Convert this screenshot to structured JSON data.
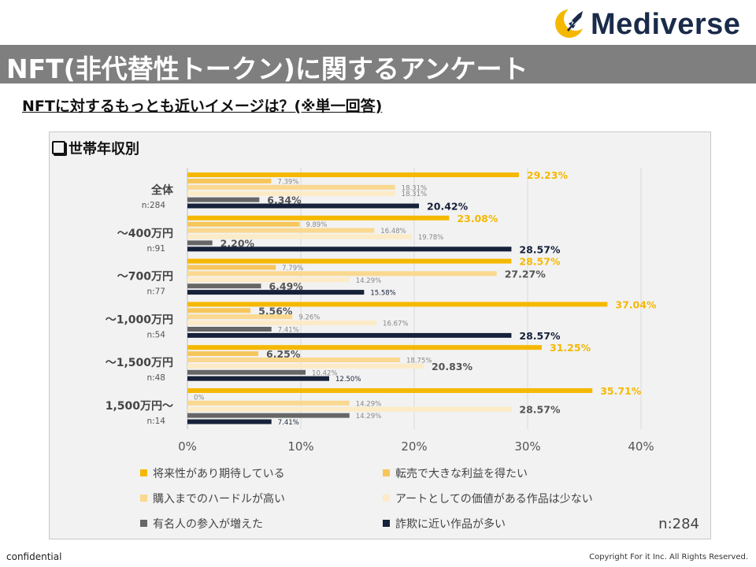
{
  "brand": {
    "name": "Mediverse",
    "accent": "#f5b800",
    "navy": "#1a2b4a"
  },
  "header": {
    "title": "NFT(非代替性トークン)に関するアンケート",
    "question": "NFTに対するもっとも近いイメージは？(※単一回答)"
  },
  "panel": {
    "title": "世帯年収別",
    "n_total": "n:284"
  },
  "footer": {
    "left": "confidential",
    "right": "Copyright For it Inc. All Rights Reserved."
  },
  "chart_data": {
    "type": "bar",
    "orientation": "horizontal",
    "title": "世帯年収別",
    "xlim": [
      0,
      40
    ],
    "xticks": [
      "0%",
      "10%",
      "20%",
      "30%",
      "40%"
    ],
    "categories": [
      {
        "label": "全体",
        "n": "n:284"
      },
      {
        "label": "～400万円",
        "n": "n:91"
      },
      {
        "label": "～700万円",
        "n": "n:77"
      },
      {
        "label": "～1,000万円",
        "n": "n:54"
      },
      {
        "label": "～1,500万円",
        "n": "n:48"
      },
      {
        "label": "1,500万円～",
        "n": "n:14"
      }
    ],
    "series": [
      {
        "name": "将来性があり期待している",
        "color": "#f5b800",
        "label_color": "#f5b800",
        "values": [
          29.23,
          23.08,
          28.57,
          37.04,
          31.25,
          35.71
        ],
        "labels": [
          "29.23%",
          "23.08%",
          "28.57%",
          "37.04%",
          "31.25%",
          "35.71%"
        ],
        "emph": [
          true,
          true,
          true,
          true,
          true,
          true
        ]
      },
      {
        "name": "転売で大きな利益を得たい",
        "color": "#f7c65a",
        "label_color": "#888888",
        "values": [
          7.39,
          9.89,
          7.79,
          5.56,
          6.25,
          0
        ],
        "labels": [
          "7.39%",
          "9.89%",
          "7.79%",
          "5.56%",
          "6.25%",
          "0%"
        ],
        "emph": [
          false,
          false,
          false,
          true,
          true,
          false
        ]
      },
      {
        "name": "購入までのハードルが高い",
        "color": "#fad88f",
        "label_color": "#888888",
        "values": [
          18.31,
          16.48,
          27.27,
          9.26,
          18.75,
          14.29
        ],
        "labels": [
          "18.31%",
          "16.48%",
          "27.27%",
          "9.26%",
          "18.75%",
          "14.29%"
        ],
        "emph": [
          false,
          false,
          true,
          false,
          false,
          false
        ]
      },
      {
        "name": "アートとしての価値がある作品は少ない",
        "color": "#fcebc6",
        "label_color": "#888888",
        "values": [
          18.31,
          19.78,
          14.29,
          16.67,
          20.83,
          28.57
        ],
        "labels": [
          "18.31%",
          "19.78%",
          "14.29%",
          "16.67%",
          "20.83%",
          "28.57%"
        ],
        "emph": [
          false,
          false,
          false,
          false,
          true,
          true
        ]
      },
      {
        "name": "有名人の参入が増えた",
        "color": "#666666",
        "label_color": "#888888",
        "values": [
          6.34,
          2.2,
          6.49,
          7.41,
          10.42,
          14.29
        ],
        "labels": [
          "6.34%",
          "2.20%",
          "6.49%",
          "7.41%",
          "10.42%",
          "14.29%"
        ],
        "emph": [
          true,
          true,
          true,
          false,
          false,
          false
        ]
      },
      {
        "name": "詐欺に近い作品が多い",
        "color": "#16213a",
        "label_color": "#16213a",
        "values": [
          20.42,
          28.57,
          15.58,
          28.57,
          12.5,
          7.41
        ],
        "labels": [
          "20.42%",
          "28.57%",
          "15.58%",
          "28.57%",
          "12.50%",
          "7.41%"
        ],
        "emph": [
          true,
          true,
          false,
          true,
          false,
          false
        ]
      }
    ]
  }
}
